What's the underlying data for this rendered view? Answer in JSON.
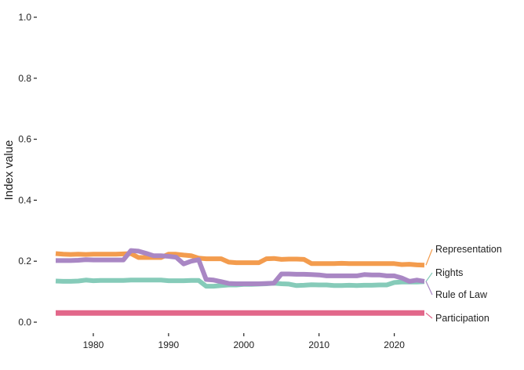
{
  "chart_data": {
    "type": "line",
    "title": "",
    "xlabel": "",
    "ylabel": "Index value",
    "xlim": [
      1975,
      2024
    ],
    "ylim": [
      0,
      1
    ],
    "x_ticks": [
      1980,
      1990,
      2000,
      2010,
      2020
    ],
    "y_ticks": [
      "0.0",
      "0.2",
      "0.4",
      "0.6",
      "0.8",
      "1.0"
    ],
    "grid": false,
    "legend": "direct labels at right end",
    "x": [
      1975,
      1976,
      1977,
      1978,
      1979,
      1980,
      1981,
      1982,
      1983,
      1984,
      1985,
      1986,
      1987,
      1988,
      1989,
      1990,
      1991,
      1992,
      1993,
      1994,
      1995,
      1996,
      1997,
      1998,
      1999,
      2000,
      2001,
      2002,
      2003,
      2004,
      2005,
      2006,
      2007,
      2008,
      2009,
      2010,
      2011,
      2012,
      2013,
      2014,
      2015,
      2016,
      2017,
      2018,
      2019,
      2020,
      2021,
      2022,
      2023,
      2024
    ],
    "series": [
      {
        "name": "Representation",
        "color": "#F39C4E",
        "values": [
          0.225,
          0.223,
          0.222,
          0.223,
          0.222,
          0.223,
          0.223,
          0.223,
          0.223,
          0.224,
          0.225,
          0.212,
          0.212,
          0.212,
          0.212,
          0.223,
          0.223,
          0.22,
          0.218,
          0.21,
          0.208,
          0.208,
          0.208,
          0.197,
          0.195,
          0.195,
          0.195,
          0.195,
          0.208,
          0.209,
          0.206,
          0.207,
          0.207,
          0.206,
          0.192,
          0.192,
          0.192,
          0.192,
          0.193,
          0.192,
          0.192,
          0.192,
          0.192,
          0.192,
          0.192,
          0.192,
          0.189,
          0.19,
          0.188,
          0.187
        ]
      },
      {
        "name": "Rights",
        "color": "#86CBB9",
        "values": [
          0.135,
          0.134,
          0.134,
          0.135,
          0.138,
          0.136,
          0.137,
          0.137,
          0.137,
          0.137,
          0.138,
          0.138,
          0.138,
          0.138,
          0.138,
          0.136,
          0.136,
          0.136,
          0.137,
          0.137,
          0.118,
          0.118,
          0.12,
          0.122,
          0.122,
          0.124,
          0.124,
          0.125,
          0.126,
          0.128,
          0.126,
          0.125,
          0.12,
          0.121,
          0.123,
          0.122,
          0.122,
          0.12,
          0.12,
          0.121,
          0.12,
          0.121,
          0.121,
          0.122,
          0.122,
          0.13,
          0.132,
          0.132,
          0.132,
          0.133
        ]
      },
      {
        "name": "Rule of Law",
        "color": "#A987C4",
        "values": [
          0.202,
          0.202,
          0.202,
          0.203,
          0.205,
          0.204,
          0.204,
          0.204,
          0.204,
          0.204,
          0.235,
          0.233,
          0.226,
          0.218,
          0.218,
          0.216,
          0.213,
          0.191,
          0.2,
          0.205,
          0.14,
          0.138,
          0.133,
          0.127,
          0.126,
          0.126,
          0.126,
          0.126,
          0.127,
          0.128,
          0.158,
          0.158,
          0.157,
          0.157,
          0.156,
          0.155,
          0.152,
          0.152,
          0.152,
          0.152,
          0.152,
          0.156,
          0.155,
          0.155,
          0.152,
          0.152,
          0.145,
          0.134,
          0.138,
          0.134
        ]
      },
      {
        "name": "Participation",
        "color": "#E2678A",
        "values": [
          0.03,
          0.03,
          0.03,
          0.03,
          0.03,
          0.03,
          0.03,
          0.03,
          0.03,
          0.03,
          0.03,
          0.03,
          0.03,
          0.03,
          0.03,
          0.03,
          0.03,
          0.03,
          0.03,
          0.03,
          0.03,
          0.03,
          0.03,
          0.03,
          0.03,
          0.03,
          0.03,
          0.03,
          0.03,
          0.03,
          0.03,
          0.03,
          0.03,
          0.03,
          0.03,
          0.03,
          0.03,
          0.03,
          0.03,
          0.03,
          0.03,
          0.03,
          0.03,
          0.03,
          0.03,
          0.03,
          0.03,
          0.03,
          0.03,
          0.03
        ]
      }
    ]
  }
}
